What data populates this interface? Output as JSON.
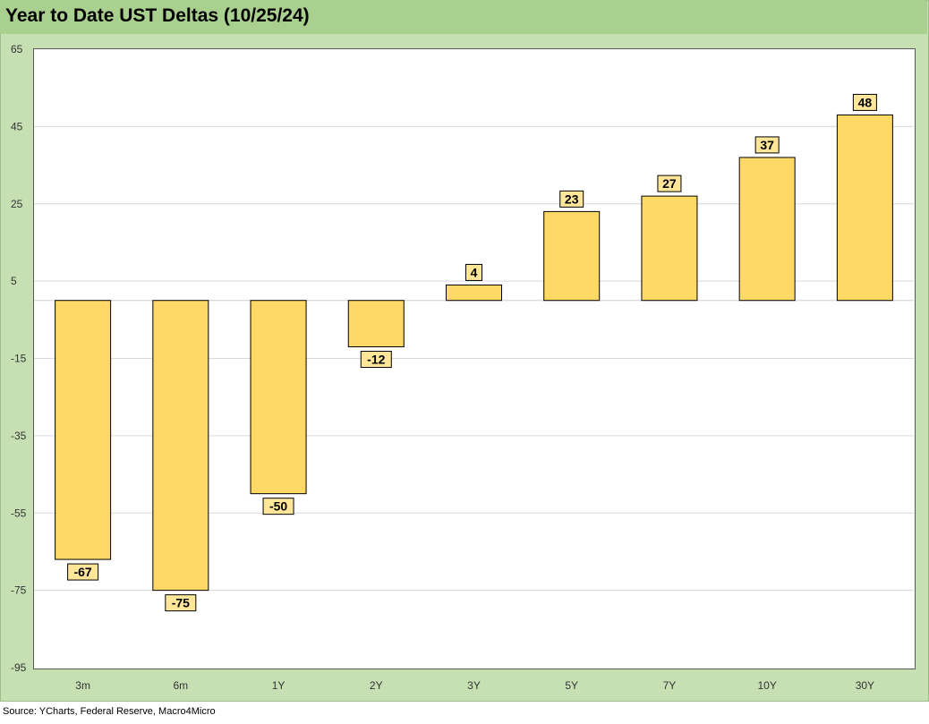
{
  "title": "Year to Date UST Deltas (10/25/24)",
  "source": "Source: YCharts, Federal Reserve, Macro4Micro",
  "colors": {
    "frame": "#c6e0b4",
    "title_bar": "#a9d08e",
    "bar_fill": "#ffd966",
    "bar_stroke": "#000000",
    "label_fill": "#ffe699",
    "gridline": "#d9d9d9"
  },
  "chart_data": {
    "type": "bar",
    "categories": [
      "3m",
      "6m",
      "1Y",
      "2Y",
      "3Y",
      "5Y",
      "7Y",
      "10Y",
      "30Y"
    ],
    "values": [
      -67,
      -75,
      -50,
      -12,
      4,
      23,
      27,
      37,
      48
    ],
    "data_labels": [
      "-67",
      "-75",
      "-50",
      "-12",
      "4",
      "23",
      "27",
      "37",
      "48"
    ],
    "title": "Year to Date UST Deltas (10/25/24)",
    "xlabel": "",
    "ylabel": "",
    "ylim": [
      -95,
      65
    ],
    "yticks": [
      65,
      45,
      25,
      5,
      -15,
      -35,
      -55,
      -75,
      -95
    ],
    "grid": true,
    "legend": "none"
  }
}
